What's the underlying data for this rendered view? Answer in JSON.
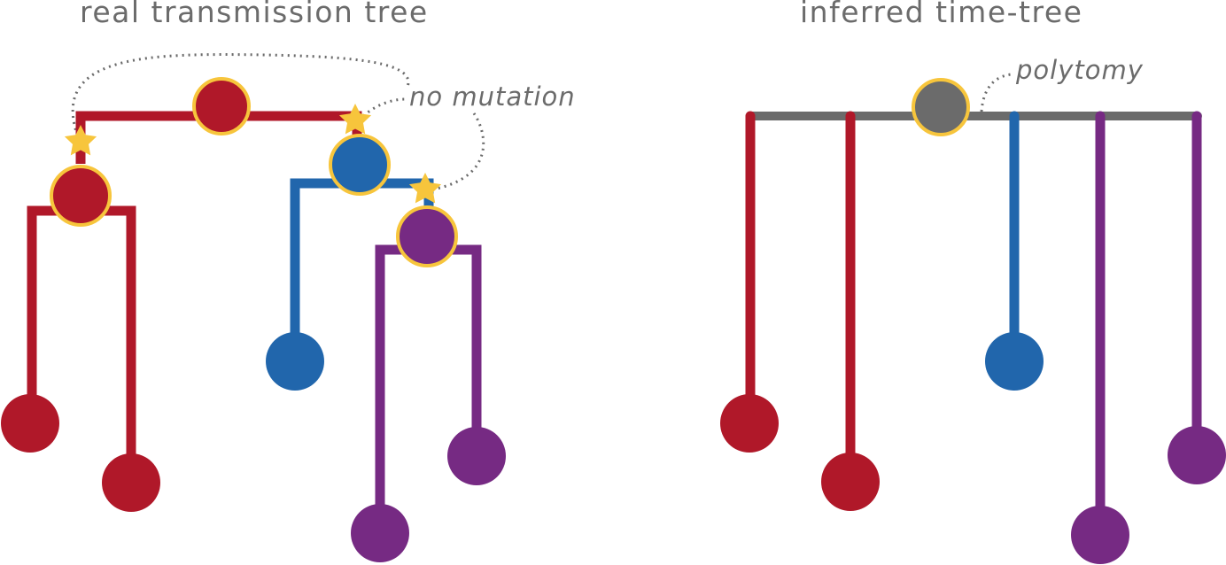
{
  "left_panel": {
    "title": "real transmission tree",
    "annotation": "no mutation"
  },
  "right_panel": {
    "title": "inferred time-tree",
    "annotation": "polytomy"
  },
  "colors": {
    "red": "#b01829",
    "blue": "#2166ac",
    "purple": "#762a83",
    "gray": "#6b6b6b",
    "node_outline": "#f7c53c",
    "star": "#f7c53c",
    "dotted": "#6b6b6b",
    "text": "#6b6b6b"
  }
}
